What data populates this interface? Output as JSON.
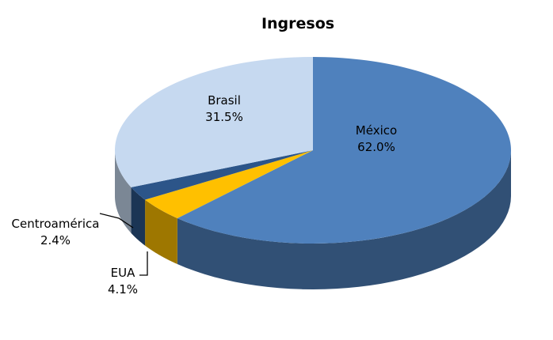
{
  "chart_data": {
    "type": "pie",
    "title": "Ingresos",
    "categories": [
      "México",
      "EUA",
      "Centroamérica",
      "Brasil"
    ],
    "values": [
      62.0,
      4.1,
      2.4,
      31.5
    ],
    "value_labels": [
      "62.0%",
      "4.1%",
      "2.4%",
      "31.5%"
    ],
    "colors": [
      "#4f81bd",
      "#ffc000",
      "#2c5589",
      "#c6d9f0"
    ]
  }
}
